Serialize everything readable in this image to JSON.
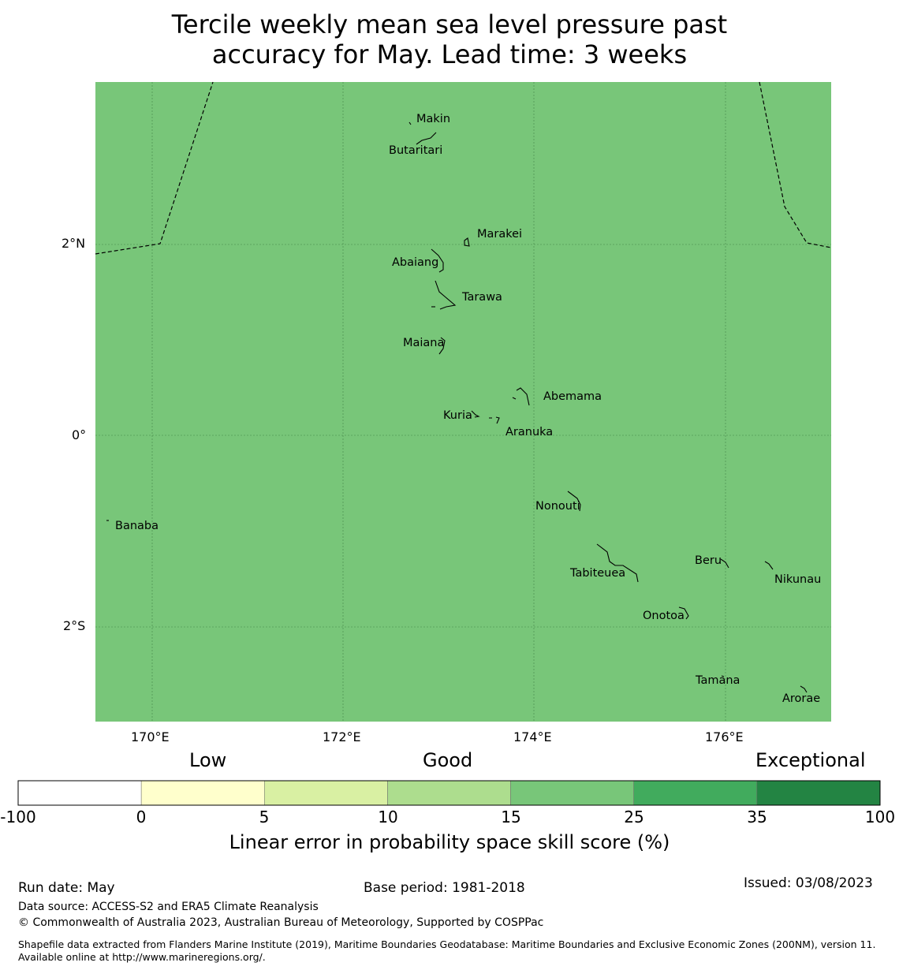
{
  "title_line1": "Tercile weekly mean sea level pressure past",
  "title_line2": "accuracy for May. Lead time: 3 weeks",
  "map": {
    "fill_color": "#78c679",
    "lon_ticks": [
      "170°E",
      "172°E",
      "174°E",
      "176°E"
    ],
    "lat_ticks": [
      "2°N",
      "0°",
      "2°S"
    ],
    "islands": [
      "Makin",
      "Butaritari",
      "Marakei",
      "Abaiang",
      "Tarawa",
      "Maiana",
      "Abemama",
      "Kuria",
      "Aranuka",
      "Nonouti",
      "Banaba",
      "Tabiteuea",
      "Beru",
      "Nikunau",
      "Onotoa",
      "Tamana",
      "Arorae"
    ]
  },
  "colorbar": {
    "categories": [
      "Low",
      "Good",
      "Exceptional"
    ],
    "colors": [
      "#ffffff",
      "#ffffcc",
      "#d9f0a3",
      "#addd8e",
      "#78c679",
      "#41ab5d",
      "#238443"
    ],
    "ticks": [
      "-100",
      "0",
      "5",
      "10",
      "15",
      "25",
      "35",
      "100"
    ],
    "label": "Linear error in probability space skill score (%)"
  },
  "footer": {
    "run_date": "Run date: May",
    "base_period": "Base period: 1981-2018",
    "issued": "Issued: 03/08/2023",
    "data_source": "Data source: ACCESS-S2 and ERA5 Climate Reanalysis",
    "copyright": "© Commonwealth of Australia 2023, Australian Bureau of Meteorology, Supported by COSPPac",
    "shapefile": "Shapefile data extracted from Flanders Marine Institute (2019), Maritime Boundaries Geodatabase: Maritime Boundaries and Exclusive Economic Zones (200NM), version 11. Available online at http://www.marineregions.org/."
  }
}
